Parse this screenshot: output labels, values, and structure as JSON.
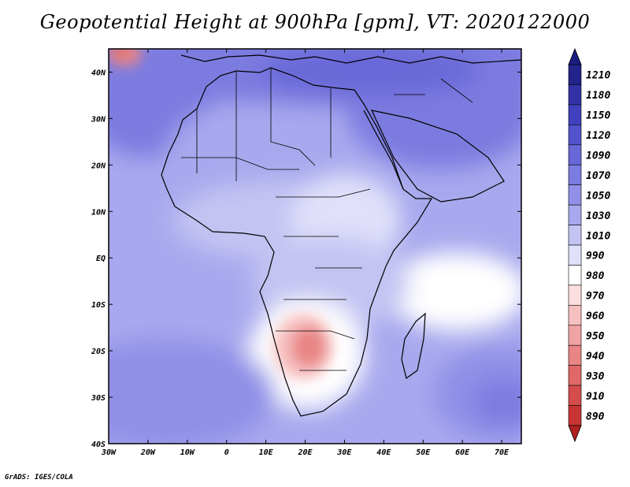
{
  "title": "Geopotential Height at 900hPa [gpm], VT: 2020122000",
  "credit": "GrADS: IGES/COLA",
  "axes": {
    "lat_ticks": [
      {
        "lat": 40,
        "label": "40N"
      },
      {
        "lat": 30,
        "label": "30N"
      },
      {
        "lat": 20,
        "label": "20N"
      },
      {
        "lat": 10,
        "label": "10N"
      },
      {
        "lat": 0,
        "label": "EQ"
      },
      {
        "lat": -10,
        "label": "10S"
      },
      {
        "lat": -20,
        "label": "20S"
      },
      {
        "lat": -30,
        "label": "30S"
      },
      {
        "lat": -40,
        "label": "40S"
      }
    ],
    "lon_ticks": [
      {
        "lon": -30,
        "label": "30W"
      },
      {
        "lon": -20,
        "label": "20W"
      },
      {
        "lon": -10,
        "label": "10W"
      },
      {
        "lon": 0,
        "label": "0"
      },
      {
        "lon": 10,
        "label": "10E"
      },
      {
        "lon": 20,
        "label": "20E"
      },
      {
        "lon": 30,
        "label": "30E"
      },
      {
        "lon": 40,
        "label": "40E"
      },
      {
        "lon": 50,
        "label": "50E"
      },
      {
        "lon": 60,
        "label": "60E"
      },
      {
        "lon": 70,
        "label": "70E"
      }
    ],
    "lon_range": [
      -30,
      75
    ],
    "lat_range": [
      -40,
      45
    ]
  },
  "colorbar": {
    "levels": [
      {
        "value": "1210",
        "color": "#23238c"
      },
      {
        "value": "1180",
        "color": "#3232a6"
      },
      {
        "value": "1150",
        "color": "#4141bf"
      },
      {
        "value": "1120",
        "color": "#5353cd"
      },
      {
        "value": "1090",
        "color": "#6767d8"
      },
      {
        "value": "1070",
        "color": "#7b7be0"
      },
      {
        "value": "1050",
        "color": "#9090e8"
      },
      {
        "value": "1030",
        "color": "#a8a8ee"
      },
      {
        "value": "1010",
        "color": "#c4c4f3"
      },
      {
        "value": "990",
        "color": "#e0e0fa"
      },
      {
        "value": "980",
        "color": "#ffffff"
      },
      {
        "value": "970",
        "color": "#fcdede"
      },
      {
        "value": "960",
        "color": "#f7c0c0"
      },
      {
        "value": "950",
        "color": "#f0a3a3"
      },
      {
        "value": "940",
        "color": "#e98585"
      },
      {
        "value": "930",
        "color": "#e06868"
      },
      {
        "value": "910",
        "color": "#d54c4c"
      },
      {
        "value": "890",
        "color": "#c83434"
      }
    ],
    "top_color": "#1c1c80",
    "bottom_color": "#b02020"
  },
  "colors": {
    "background": "#a8a8ee",
    "coast": "#000000"
  }
}
